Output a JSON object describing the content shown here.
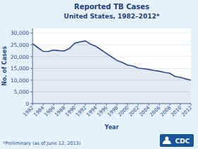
{
  "chart_data": {
    "type": "line",
    "title": "Reported TB Cases",
    "subtitle": "United States, 1982–2012*",
    "x_label": "Year",
    "y_label": "No. of Cases",
    "annotations": [
      "*Preliminary (as of June 12, 2013)",
      "CDC"
    ],
    "x": [
      1982,
      1983,
      1984,
      1985,
      1986,
      1987,
      1988,
      1989,
      1990,
      1991,
      1992,
      1993,
      1994,
      1995,
      1996,
      1997,
      1998,
      1999,
      2000,
      2001,
      2002,
      2003,
      2004,
      2005,
      2006,
      2007,
      2008,
      2009,
      2010,
      2011,
      2012
    ],
    "values": [
      25520,
      23846,
      22255,
      22201,
      22768,
      22517,
      22436,
      23495,
      25701,
      26283,
      26673,
      25313,
      24361,
      22860,
      21337,
      19855,
      18361,
      17531,
      16377,
      15989,
      15078,
      14874,
      14517,
      14093,
      13779,
      13293,
      12904,
      11540,
      11182,
      10521,
      9945
    ],
    "color": "#2a4d8f",
    "xlim": [
      1982,
      2012
    ],
    "xticks": [
      1982,
      1984,
      1986,
      1988,
      1990,
      1992,
      1994,
      1996,
      1998,
      2000,
      2002,
      2004,
      2006,
      2008,
      2010,
      2012
    ],
    "ylim": [
      0,
      32000
    ],
    "yticks": [
      0,
      {
        "value": 5000,
        "label": "5,000"
      },
      {
        "value": 10000,
        "label": "10,000"
      },
      {
        "value": 15000,
        "label": "15,000"
      },
      {
        "value": 20000,
        "label": "20,000"
      },
      {
        "value": 25000,
        "label": "25,000"
      },
      {
        "value": 30000,
        "label": "30,000"
      }
    ],
    "grid": true
  }
}
